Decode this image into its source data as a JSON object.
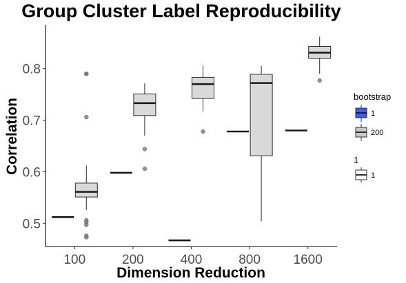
{
  "chart_data": {
    "type": "boxplot",
    "title": "Group Cluster Label Reproducibility",
    "xlabel": "Dimension Reduction",
    "ylabel": "Correlation",
    "categories": [
      "100",
      "200",
      "400",
      "800",
      "1600"
    ],
    "ylim": [
      0.455,
      0.885
    ],
    "yticks": [
      0.5,
      0.6,
      0.7,
      0.8
    ],
    "ytick_labels": [
      "0.5",
      "0.6",
      "0.7",
      "0.8"
    ],
    "grid": false,
    "colors": {
      "bootstrap_1": "#3a5ef5",
      "bootstrap_200": "#d9d9d9",
      "box_stroke": "#2b2b2b",
      "outlier": "#7a7a7a"
    },
    "series": [
      {
        "name": "1",
        "type": "single",
        "values": [
          0.512,
          0.598,
          0.467,
          0.678,
          0.68
        ]
      },
      {
        "name": "200",
        "type": "box",
        "boxes": [
          {
            "q1": 0.551,
            "median": 0.561,
            "q3": 0.578,
            "whisker_low": 0.526,
            "whisker_high": 0.612,
            "outliers": [
              0.79,
              0.79,
              0.706,
              0.506,
              0.502,
              0.497,
              0.476,
              0.473
            ]
          },
          {
            "q1": 0.709,
            "median": 0.733,
            "q3": 0.751,
            "whisker_low": 0.67,
            "whisker_high": 0.772,
            "outliers": [
              0.644,
              0.606
            ]
          },
          {
            "q1": 0.742,
            "median": 0.77,
            "q3": 0.783,
            "whisker_low": 0.717,
            "whisker_high": 0.806,
            "outliers": [
              0.678
            ]
          },
          {
            "q1": 0.631,
            "median": 0.772,
            "q3": 0.789,
            "whisker_low": 0.504,
            "whisker_high": 0.805,
            "outliers": []
          },
          {
            "q1": 0.82,
            "median": 0.831,
            "q3": 0.843,
            "whisker_low": 0.79,
            "whisker_high": 0.862,
            "outliers": [
              0.777
            ]
          }
        ]
      }
    ],
    "legends": [
      {
        "title": "bootstrap",
        "position": "right",
        "entries": [
          {
            "label": "1",
            "color": "#3a5ef5"
          },
          {
            "label": "200",
            "color": "#c8c8c8"
          }
        ]
      },
      {
        "title": "1",
        "position": "right",
        "entries": [
          {
            "label": "1",
            "color": "#ffffff"
          }
        ]
      }
    ]
  }
}
